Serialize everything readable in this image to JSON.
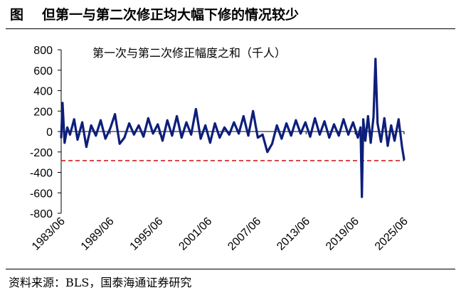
{
  "figure": {
    "label": "图",
    "title": "但第一与第二次修正均大幅下修的情况较少",
    "source": "资料来源：BLS，国泰海通证券研究"
  },
  "chart_data": {
    "type": "line",
    "series_title": "第一次与第二次修正幅度之和（千人）",
    "ylim": [
      -800,
      800
    ],
    "yticks": [
      800,
      600,
      400,
      200,
      0,
      -200,
      -400,
      -600,
      -800
    ],
    "xticks": [
      "1983/06",
      "1989/06",
      "1995/06",
      "2001/06",
      "2007/06",
      "2013/06",
      "2019/06",
      "2025/06"
    ],
    "x_start": "1983/06",
    "x_end": "2025/06",
    "grid": false,
    "threshold_line": {
      "value": -285,
      "color": "#d42020",
      "style": "dashed"
    },
    "series": [
      {
        "color": "#0d1f7a",
        "points": [
          [
            "1983/06",
            -60
          ],
          [
            "1983/08",
            280
          ],
          [
            "1983/11",
            -110
          ],
          [
            "1984/03",
            40
          ],
          [
            "1984/07",
            -30
          ],
          [
            "1985/01",
            120
          ],
          [
            "1985/06",
            -80
          ],
          [
            "1986/01",
            90
          ],
          [
            "1986/07",
            -150
          ],
          [
            "1987/02",
            60
          ],
          [
            "1987/09",
            -40
          ],
          [
            "1988/04",
            110
          ],
          [
            "1988/11",
            -70
          ],
          [
            "1989/06",
            30
          ],
          [
            "1990/01",
            170
          ],
          [
            "1990/08",
            -120
          ],
          [
            "1991/03",
            -60
          ],
          [
            "1991/10",
            80
          ],
          [
            "1992/05",
            -30
          ],
          [
            "1992/12",
            60
          ],
          [
            "1993/07",
            -50
          ],
          [
            "1994/02",
            130
          ],
          [
            "1994/09",
            -20
          ],
          [
            "1995/04",
            70
          ],
          [
            "1995/11",
            -90
          ],
          [
            "1996/06",
            110
          ],
          [
            "1997/01",
            -40
          ],
          [
            "1997/08",
            150
          ],
          [
            "1998/03",
            -60
          ],
          [
            "1998/10",
            90
          ],
          [
            "1999/05",
            -30
          ],
          [
            "1999/12",
            220
          ],
          [
            "2000/07",
            -70
          ],
          [
            "2001/02",
            60
          ],
          [
            "2001/09",
            -110
          ],
          [
            "2002/04",
            80
          ],
          [
            "2002/11",
            -60
          ],
          [
            "2003/06",
            40
          ],
          [
            "2004/01",
            -30
          ],
          [
            "2004/08",
            90
          ],
          [
            "2005/03",
            -20
          ],
          [
            "2005/10",
            150
          ],
          [
            "2006/05",
            -40
          ],
          [
            "2006/12",
            200
          ],
          [
            "2007/07",
            -60
          ],
          [
            "2008/02",
            -30
          ],
          [
            "2008/09",
            -200
          ],
          [
            "2009/04",
            -120
          ],
          [
            "2009/11",
            60
          ],
          [
            "2010/06",
            -70
          ],
          [
            "2011/01",
            80
          ],
          [
            "2011/08",
            -40
          ],
          [
            "2012/03",
            110
          ],
          [
            "2012/10",
            -20
          ],
          [
            "2013/05",
            90
          ],
          [
            "2013/12",
            -50
          ],
          [
            "2014/07",
            130
          ],
          [
            "2015/02",
            -30
          ],
          [
            "2015/09",
            100
          ],
          [
            "2016/04",
            -60
          ],
          [
            "2016/11",
            70
          ],
          [
            "2017/06",
            -40
          ],
          [
            "2018/01",
            120
          ],
          [
            "2018/08",
            -30
          ],
          [
            "2019/03",
            90
          ],
          [
            "2019/10",
            -60
          ],
          [
            "2020/02",
            40
          ],
          [
            "2020/04",
            -640
          ],
          [
            "2020/06",
            120
          ],
          [
            "2020/09",
            -90
          ],
          [
            "2021/01",
            150
          ],
          [
            "2021/05",
            -110
          ],
          [
            "2021/09",
            140
          ],
          [
            "2021/12",
            710
          ],
          [
            "2022/03",
            80
          ],
          [
            "2022/08",
            -100
          ],
          [
            "2023/01",
            130
          ],
          [
            "2023/06",
            -140
          ],
          [
            "2023/11",
            60
          ],
          [
            "2024/04",
            -90
          ],
          [
            "2024/10",
            120
          ],
          [
            "2025/03",
            -150
          ],
          [
            "2025/06",
            -275
          ]
        ]
      }
    ]
  }
}
